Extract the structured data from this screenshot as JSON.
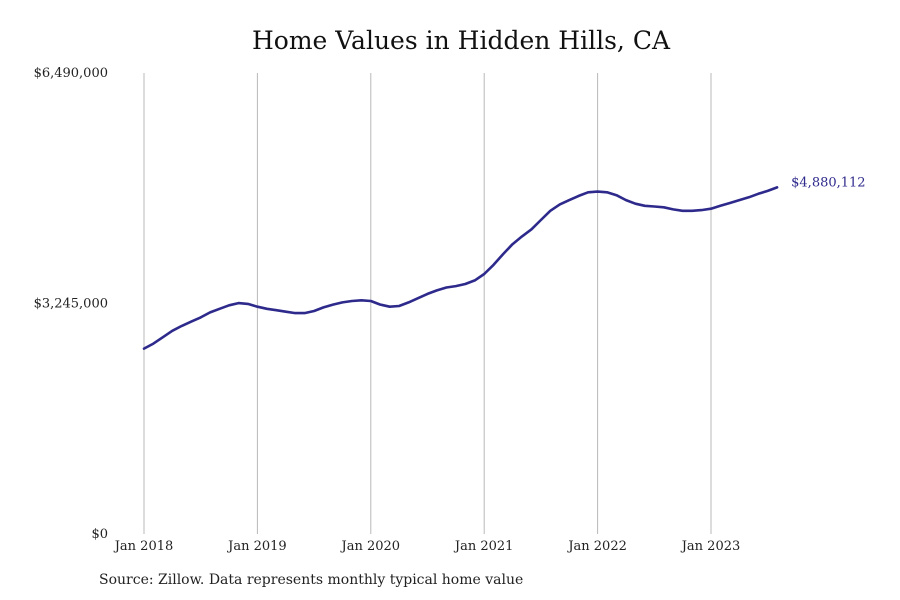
{
  "chart_data": {
    "type": "line",
    "title": "Home Values in Hidden Hills, CA",
    "xlabel": "",
    "ylabel": "",
    "source": "Source: Zillow. Data represents monthly typical home value",
    "x_ticks": [
      "Jan 2018",
      "Jan 2019",
      "Jan 2020",
      "Jan 2021",
      "Jan 2022",
      "Jan 2023"
    ],
    "y_ticks": [
      "$0",
      "$3,245,000",
      "$6,490,000"
    ],
    "ylim": [
      0,
      6490000
    ],
    "grid": "vertical",
    "line_color": "#2e2a8c",
    "end_label": "$4,880,112",
    "series": [
      {
        "x": [
          "2018-01",
          "2018-02",
          "2018-03",
          "2018-04",
          "2018-05",
          "2018-06",
          "2018-07",
          "2018-08",
          "2018-09",
          "2018-10",
          "2018-11",
          "2018-12",
          "2019-01",
          "2019-02",
          "2019-03",
          "2019-04",
          "2019-05",
          "2019-06",
          "2019-07",
          "2019-08",
          "2019-09",
          "2019-10",
          "2019-11",
          "2019-12",
          "2020-01",
          "2020-02",
          "2020-03",
          "2020-04",
          "2020-05",
          "2020-06",
          "2020-07",
          "2020-08",
          "2020-09",
          "2020-10",
          "2020-11",
          "2020-12",
          "2021-01",
          "2021-02",
          "2021-03",
          "2021-04",
          "2021-05",
          "2021-06",
          "2021-07",
          "2021-08",
          "2021-09",
          "2021-10",
          "2021-11",
          "2021-12",
          "2022-01",
          "2022-02",
          "2022-03",
          "2022-04",
          "2022-05",
          "2022-06",
          "2022-07",
          "2022-08",
          "2022-09",
          "2022-10",
          "2022-11",
          "2022-12",
          "2023-01",
          "2023-02",
          "2023-03",
          "2023-04",
          "2023-05",
          "2023-06",
          "2023-07",
          "2023-08"
        ],
        "values": [
          2610000,
          2680000,
          2770000,
          2860000,
          2930000,
          2990000,
          3050000,
          3120000,
          3170000,
          3220000,
          3250000,
          3240000,
          3200000,
          3170000,
          3150000,
          3130000,
          3110000,
          3110000,
          3140000,
          3190000,
          3230000,
          3260000,
          3280000,
          3290000,
          3280000,
          3230000,
          3200000,
          3210000,
          3260000,
          3320000,
          3380000,
          3430000,
          3470000,
          3490000,
          3520000,
          3570000,
          3660000,
          3790000,
          3940000,
          4080000,
          4190000,
          4290000,
          4420000,
          4550000,
          4640000,
          4700000,
          4760000,
          4810000,
          4820000,
          4810000,
          4770000,
          4700000,
          4650000,
          4620000,
          4610000,
          4600000,
          4570000,
          4550000,
          4550000,
          4560000,
          4580000,
          4620000,
          4660000,
          4700000,
          4740000,
          4790000,
          4830000,
          4880112
        ]
      }
    ]
  }
}
